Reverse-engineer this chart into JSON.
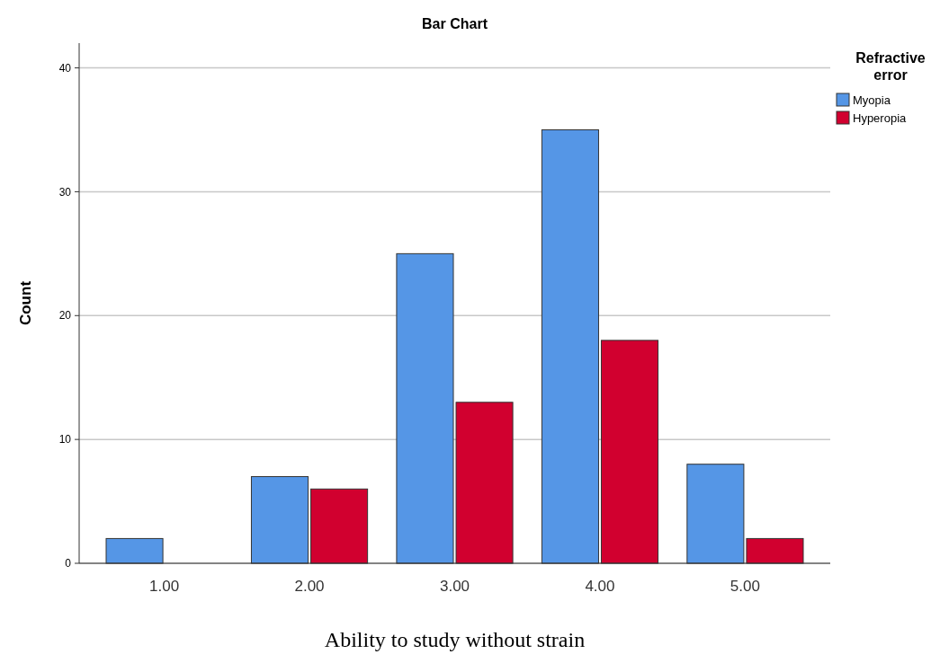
{
  "chart_data": {
    "type": "bar",
    "title": "Bar Chart",
    "xlabel": "Ability to study without strain",
    "ylabel": "Count",
    "legend_title": "Refractive error",
    "categories": [
      "1.00",
      "2.00",
      "3.00",
      "4.00",
      "5.00"
    ],
    "series": [
      {
        "name": "Myopia",
        "color": "#5596e6",
        "values": [
          2,
          7,
          25,
          35,
          8
        ]
      },
      {
        "name": "Hyperopia",
        "color": "#d1002f",
        "values": [
          0,
          6,
          13,
          18,
          2
        ]
      }
    ],
    "ylim": [
      0,
      42
    ],
    "yticks": [
      0,
      10,
      20,
      30,
      40
    ],
    "grid": "y",
    "legend": "top right"
  }
}
